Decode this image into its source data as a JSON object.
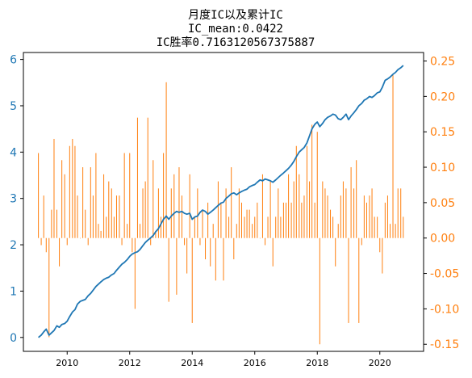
{
  "chart_data": {
    "type": "bar+line",
    "title_lines": [
      "月度IC以及累计IC",
      "IC_mean:0.0422",
      "IC胜率0.7163120567375887"
    ],
    "x_domain": [
      2008.6,
      2021.4
    ],
    "x_ticks": [
      2010,
      2012,
      2014,
      2016,
      2018,
      2020
    ],
    "left_axis": {
      "color": "#1f77b4",
      "ylim": [
        -0.3,
        6.15
      ],
      "ticks": [
        0,
        1,
        2,
        3,
        4,
        5,
        6
      ]
    },
    "right_axis": {
      "color": "#ff7f0e",
      "ylim": [
        -0.16,
        0.262
      ],
      "ticks": [
        -0.15,
        -0.1,
        -0.05,
        0.0,
        0.05,
        0.1,
        0.15,
        0.2,
        0.25
      ]
    },
    "grid": false,
    "series": [
      {
        "name": "",
        "type": "line",
        "axis": "left",
        "color": "#1f77b4",
        "points": [
          [
            2009.08,
            0.0
          ],
          [
            2009.17,
            0.05
          ],
          [
            2009.25,
            0.12
          ],
          [
            2009.33,
            0.18
          ],
          [
            2009.42,
            0.05
          ],
          [
            2009.5,
            0.1
          ],
          [
            2009.58,
            0.15
          ],
          [
            2009.67,
            0.25
          ],
          [
            2009.75,
            0.22
          ],
          [
            2009.83,
            0.28
          ],
          [
            2009.92,
            0.3
          ],
          [
            2010.0,
            0.35
          ],
          [
            2010.08,
            0.45
          ],
          [
            2010.17,
            0.55
          ],
          [
            2010.25,
            0.6
          ],
          [
            2010.33,
            0.72
          ],
          [
            2010.42,
            0.78
          ],
          [
            2010.5,
            0.8
          ],
          [
            2010.58,
            0.82
          ],
          [
            2010.67,
            0.9
          ],
          [
            2010.75,
            0.95
          ],
          [
            2010.83,
            1.02
          ],
          [
            2010.92,
            1.1
          ],
          [
            2011.0,
            1.15
          ],
          [
            2011.08,
            1.2
          ],
          [
            2011.17,
            1.25
          ],
          [
            2011.25,
            1.28
          ],
          [
            2011.33,
            1.3
          ],
          [
            2011.42,
            1.35
          ],
          [
            2011.5,
            1.38
          ],
          [
            2011.58,
            1.45
          ],
          [
            2011.67,
            1.52
          ],
          [
            2011.75,
            1.58
          ],
          [
            2011.83,
            1.62
          ],
          [
            2011.92,
            1.68
          ],
          [
            2012.0,
            1.75
          ],
          [
            2012.08,
            1.8
          ],
          [
            2012.17,
            1.83
          ],
          [
            2012.25,
            1.85
          ],
          [
            2012.33,
            1.9
          ],
          [
            2012.42,
            1.98
          ],
          [
            2012.5,
            2.05
          ],
          [
            2012.58,
            2.1
          ],
          [
            2012.67,
            2.15
          ],
          [
            2012.75,
            2.2
          ],
          [
            2012.83,
            2.28
          ],
          [
            2012.92,
            2.35
          ],
          [
            2013.0,
            2.45
          ],
          [
            2013.08,
            2.55
          ],
          [
            2013.17,
            2.62
          ],
          [
            2013.25,
            2.55
          ],
          [
            2013.33,
            2.62
          ],
          [
            2013.42,
            2.68
          ],
          [
            2013.5,
            2.72
          ],
          [
            2013.58,
            2.7
          ],
          [
            2013.67,
            2.72
          ],
          [
            2013.75,
            2.68
          ],
          [
            2013.83,
            2.66
          ],
          [
            2013.92,
            2.68
          ],
          [
            2014.0,
            2.55
          ],
          [
            2014.08,
            2.6
          ],
          [
            2014.17,
            2.62
          ],
          [
            2014.25,
            2.7
          ],
          [
            2014.33,
            2.75
          ],
          [
            2014.42,
            2.72
          ],
          [
            2014.5,
            2.66
          ],
          [
            2014.58,
            2.7
          ],
          [
            2014.67,
            2.75
          ],
          [
            2014.75,
            2.8
          ],
          [
            2014.83,
            2.85
          ],
          [
            2014.92,
            2.9
          ],
          [
            2015.0,
            2.92
          ],
          [
            2015.08,
            3.0
          ],
          [
            2015.17,
            3.05
          ],
          [
            2015.25,
            3.1
          ],
          [
            2015.33,
            3.12
          ],
          [
            2015.42,
            3.08
          ],
          [
            2015.5,
            3.12
          ],
          [
            2015.58,
            3.15
          ],
          [
            2015.67,
            3.18
          ],
          [
            2015.75,
            3.2
          ],
          [
            2015.83,
            3.25
          ],
          [
            2015.92,
            3.28
          ],
          [
            2016.0,
            3.3
          ],
          [
            2016.08,
            3.35
          ],
          [
            2016.17,
            3.4
          ],
          [
            2016.25,
            3.38
          ],
          [
            2016.33,
            3.42
          ],
          [
            2016.42,
            3.4
          ],
          [
            2016.5,
            3.38
          ],
          [
            2016.58,
            3.35
          ],
          [
            2016.67,
            3.4
          ],
          [
            2016.75,
            3.45
          ],
          [
            2016.83,
            3.5
          ],
          [
            2016.92,
            3.55
          ],
          [
            2017.0,
            3.6
          ],
          [
            2017.08,
            3.65
          ],
          [
            2017.17,
            3.72
          ],
          [
            2017.25,
            3.8
          ],
          [
            2017.33,
            3.9
          ],
          [
            2017.42,
            4.0
          ],
          [
            2017.5,
            4.05
          ],
          [
            2017.58,
            4.1
          ],
          [
            2017.67,
            4.2
          ],
          [
            2017.75,
            4.35
          ],
          [
            2017.83,
            4.5
          ],
          [
            2017.92,
            4.6
          ],
          [
            2018.0,
            4.65
          ],
          [
            2018.08,
            4.55
          ],
          [
            2018.17,
            4.62
          ],
          [
            2018.25,
            4.7
          ],
          [
            2018.33,
            4.75
          ],
          [
            2018.42,
            4.78
          ],
          [
            2018.5,
            4.82
          ],
          [
            2018.58,
            4.8
          ],
          [
            2018.67,
            4.72
          ],
          [
            2018.75,
            4.7
          ],
          [
            2018.83,
            4.75
          ],
          [
            2018.92,
            4.82
          ],
          [
            2019.0,
            4.7
          ],
          [
            2019.08,
            4.78
          ],
          [
            2019.17,
            4.85
          ],
          [
            2019.25,
            4.92
          ],
          [
            2019.33,
            5.0
          ],
          [
            2019.42,
            5.05
          ],
          [
            2019.5,
            5.12
          ],
          [
            2019.58,
            5.15
          ],
          [
            2019.67,
            5.2
          ],
          [
            2019.75,
            5.18
          ],
          [
            2019.83,
            5.22
          ],
          [
            2019.92,
            5.28
          ],
          [
            2020.0,
            5.3
          ],
          [
            2020.08,
            5.4
          ],
          [
            2020.17,
            5.55
          ],
          [
            2020.25,
            5.58
          ],
          [
            2020.33,
            5.62
          ],
          [
            2020.42,
            5.68
          ],
          [
            2020.5,
            5.72
          ],
          [
            2020.58,
            5.78
          ],
          [
            2020.67,
            5.82
          ],
          [
            2020.75,
            5.87
          ]
        ]
      },
      {
        "name": "",
        "type": "bar",
        "axis": "right",
        "color": "#ff7f0e",
        "points": [
          [
            2009.08,
            0.12
          ],
          [
            2009.17,
            -0.01
          ],
          [
            2009.25,
            0.06
          ],
          [
            2009.33,
            -0.02
          ],
          [
            2009.42,
            -0.14
          ],
          [
            2009.5,
            0.04
          ],
          [
            2009.58,
            0.14
          ],
          [
            2009.67,
            0.04
          ],
          [
            2009.75,
            -0.04
          ],
          [
            2009.83,
            0.11
          ],
          [
            2009.92,
            0.09
          ],
          [
            2010.0,
            -0.01
          ],
          [
            2010.08,
            0.13
          ],
          [
            2010.17,
            0.14
          ],
          [
            2010.25,
            0.13
          ],
          [
            2010.33,
            0.06
          ],
          [
            2010.42,
            0.0
          ],
          [
            2010.5,
            0.1
          ],
          [
            2010.58,
            0.04
          ],
          [
            2010.67,
            -0.01
          ],
          [
            2010.75,
            0.1
          ],
          [
            2010.83,
            0.06
          ],
          [
            2010.92,
            0.12
          ],
          [
            2011.0,
            0.02
          ],
          [
            2011.08,
            0.01
          ],
          [
            2011.17,
            0.09
          ],
          [
            2011.25,
            0.03
          ],
          [
            2011.33,
            0.08
          ],
          [
            2011.42,
            0.07
          ],
          [
            2011.5,
            0.03
          ],
          [
            2011.58,
            0.06
          ],
          [
            2011.67,
            0.06
          ],
          [
            2011.75,
            -0.01
          ],
          [
            2011.83,
            0.12
          ],
          [
            2011.92,
            0.02
          ],
          [
            2012.0,
            0.12
          ],
          [
            2012.08,
            -0.02
          ],
          [
            2012.17,
            -0.1
          ],
          [
            2012.25,
            0.17
          ],
          [
            2012.33,
            0.02
          ],
          [
            2012.42,
            0.07
          ],
          [
            2012.5,
            0.08
          ],
          [
            2012.58,
            0.17
          ],
          [
            2012.67,
            -0.01
          ],
          [
            2012.75,
            0.11
          ],
          [
            2012.83,
            0.01
          ],
          [
            2012.92,
            0.07
          ],
          [
            2013.0,
            0.03
          ],
          [
            2013.08,
            0.12
          ],
          [
            2013.17,
            0.22
          ],
          [
            2013.25,
            -0.09
          ],
          [
            2013.33,
            0.07
          ],
          [
            2013.42,
            0.09
          ],
          [
            2013.5,
            -0.08
          ],
          [
            2013.58,
            0.1
          ],
          [
            2013.67,
            0.06
          ],
          [
            2013.75,
            -0.01
          ],
          [
            2013.83,
            -0.05
          ],
          [
            2013.92,
            0.09
          ],
          [
            2014.0,
            -0.12
          ],
          [
            2014.08,
            0.03
          ],
          [
            2014.17,
            0.07
          ],
          [
            2014.25,
            -0.01
          ],
          [
            2014.33,
            0.04
          ],
          [
            2014.42,
            -0.03
          ],
          [
            2014.5,
            0.05
          ],
          [
            2014.58,
            -0.04
          ],
          [
            2014.67,
            0.02
          ],
          [
            2014.75,
            -0.06
          ],
          [
            2014.83,
            0.08
          ],
          [
            2014.92,
            0.05
          ],
          [
            2015.0,
            -0.06
          ],
          [
            2015.08,
            0.07
          ],
          [
            2015.17,
            0.03
          ],
          [
            2015.25,
            0.1
          ],
          [
            2015.33,
            -0.03
          ],
          [
            2015.42,
            0.02
          ],
          [
            2015.5,
            0.07
          ],
          [
            2015.58,
            0.05
          ],
          [
            2015.67,
            0.03
          ],
          [
            2015.75,
            0.04
          ],
          [
            2015.83,
            0.04
          ],
          [
            2015.92,
            0.02
          ],
          [
            2016.0,
            0.03
          ],
          [
            2016.08,
            0.05
          ],
          [
            2016.17,
            0.0
          ],
          [
            2016.25,
            0.09
          ],
          [
            2016.33,
            -0.01
          ],
          [
            2016.42,
            0.03
          ],
          [
            2016.5,
            0.08
          ],
          [
            2016.58,
            -0.04
          ],
          [
            2016.67,
            0.03
          ],
          [
            2016.75,
            0.07
          ],
          [
            2016.83,
            0.03
          ],
          [
            2016.92,
            0.05
          ],
          [
            2017.0,
            0.05
          ],
          [
            2017.08,
            0.09
          ],
          [
            2017.17,
            0.05
          ],
          [
            2017.25,
            0.08
          ],
          [
            2017.33,
            0.13
          ],
          [
            2017.42,
            0.09
          ],
          [
            2017.5,
            0.05
          ],
          [
            2017.58,
            0.06
          ],
          [
            2017.67,
            0.13
          ],
          [
            2017.75,
            0.08
          ],
          [
            2017.83,
            0.16
          ],
          [
            2017.92,
            0.05
          ],
          [
            2018.0,
            0.15
          ],
          [
            2018.08,
            -0.15
          ],
          [
            2018.17,
            0.08
          ],
          [
            2018.25,
            0.07
          ],
          [
            2018.33,
            0.06
          ],
          [
            2018.42,
            0.04
          ],
          [
            2018.5,
            0.03
          ],
          [
            2018.58,
            -0.04
          ],
          [
            2018.67,
            0.02
          ],
          [
            2018.75,
            0.06
          ],
          [
            2018.83,
            0.08
          ],
          [
            2018.92,
            0.07
          ],
          [
            2019.0,
            -0.12
          ],
          [
            2019.08,
            0.1
          ],
          [
            2019.17,
            0.07
          ],
          [
            2019.25,
            0.11
          ],
          [
            2019.33,
            -0.12
          ],
          [
            2019.42,
            -0.01
          ],
          [
            2019.5,
            0.06
          ],
          [
            2019.58,
            0.05
          ],
          [
            2019.67,
            0.06
          ],
          [
            2019.75,
            0.07
          ],
          [
            2019.83,
            0.03
          ],
          [
            2019.92,
            0.03
          ],
          [
            2020.0,
            -0.02
          ],
          [
            2020.08,
            -0.05
          ],
          [
            2020.17,
            0.05
          ],
          [
            2020.25,
            0.06
          ],
          [
            2020.33,
            0.02
          ],
          [
            2020.42,
            0.23
          ],
          [
            2020.5,
            0.02
          ],
          [
            2020.58,
            0.07
          ],
          [
            2020.67,
            0.07
          ],
          [
            2020.75,
            0.03
          ]
        ]
      }
    ]
  }
}
